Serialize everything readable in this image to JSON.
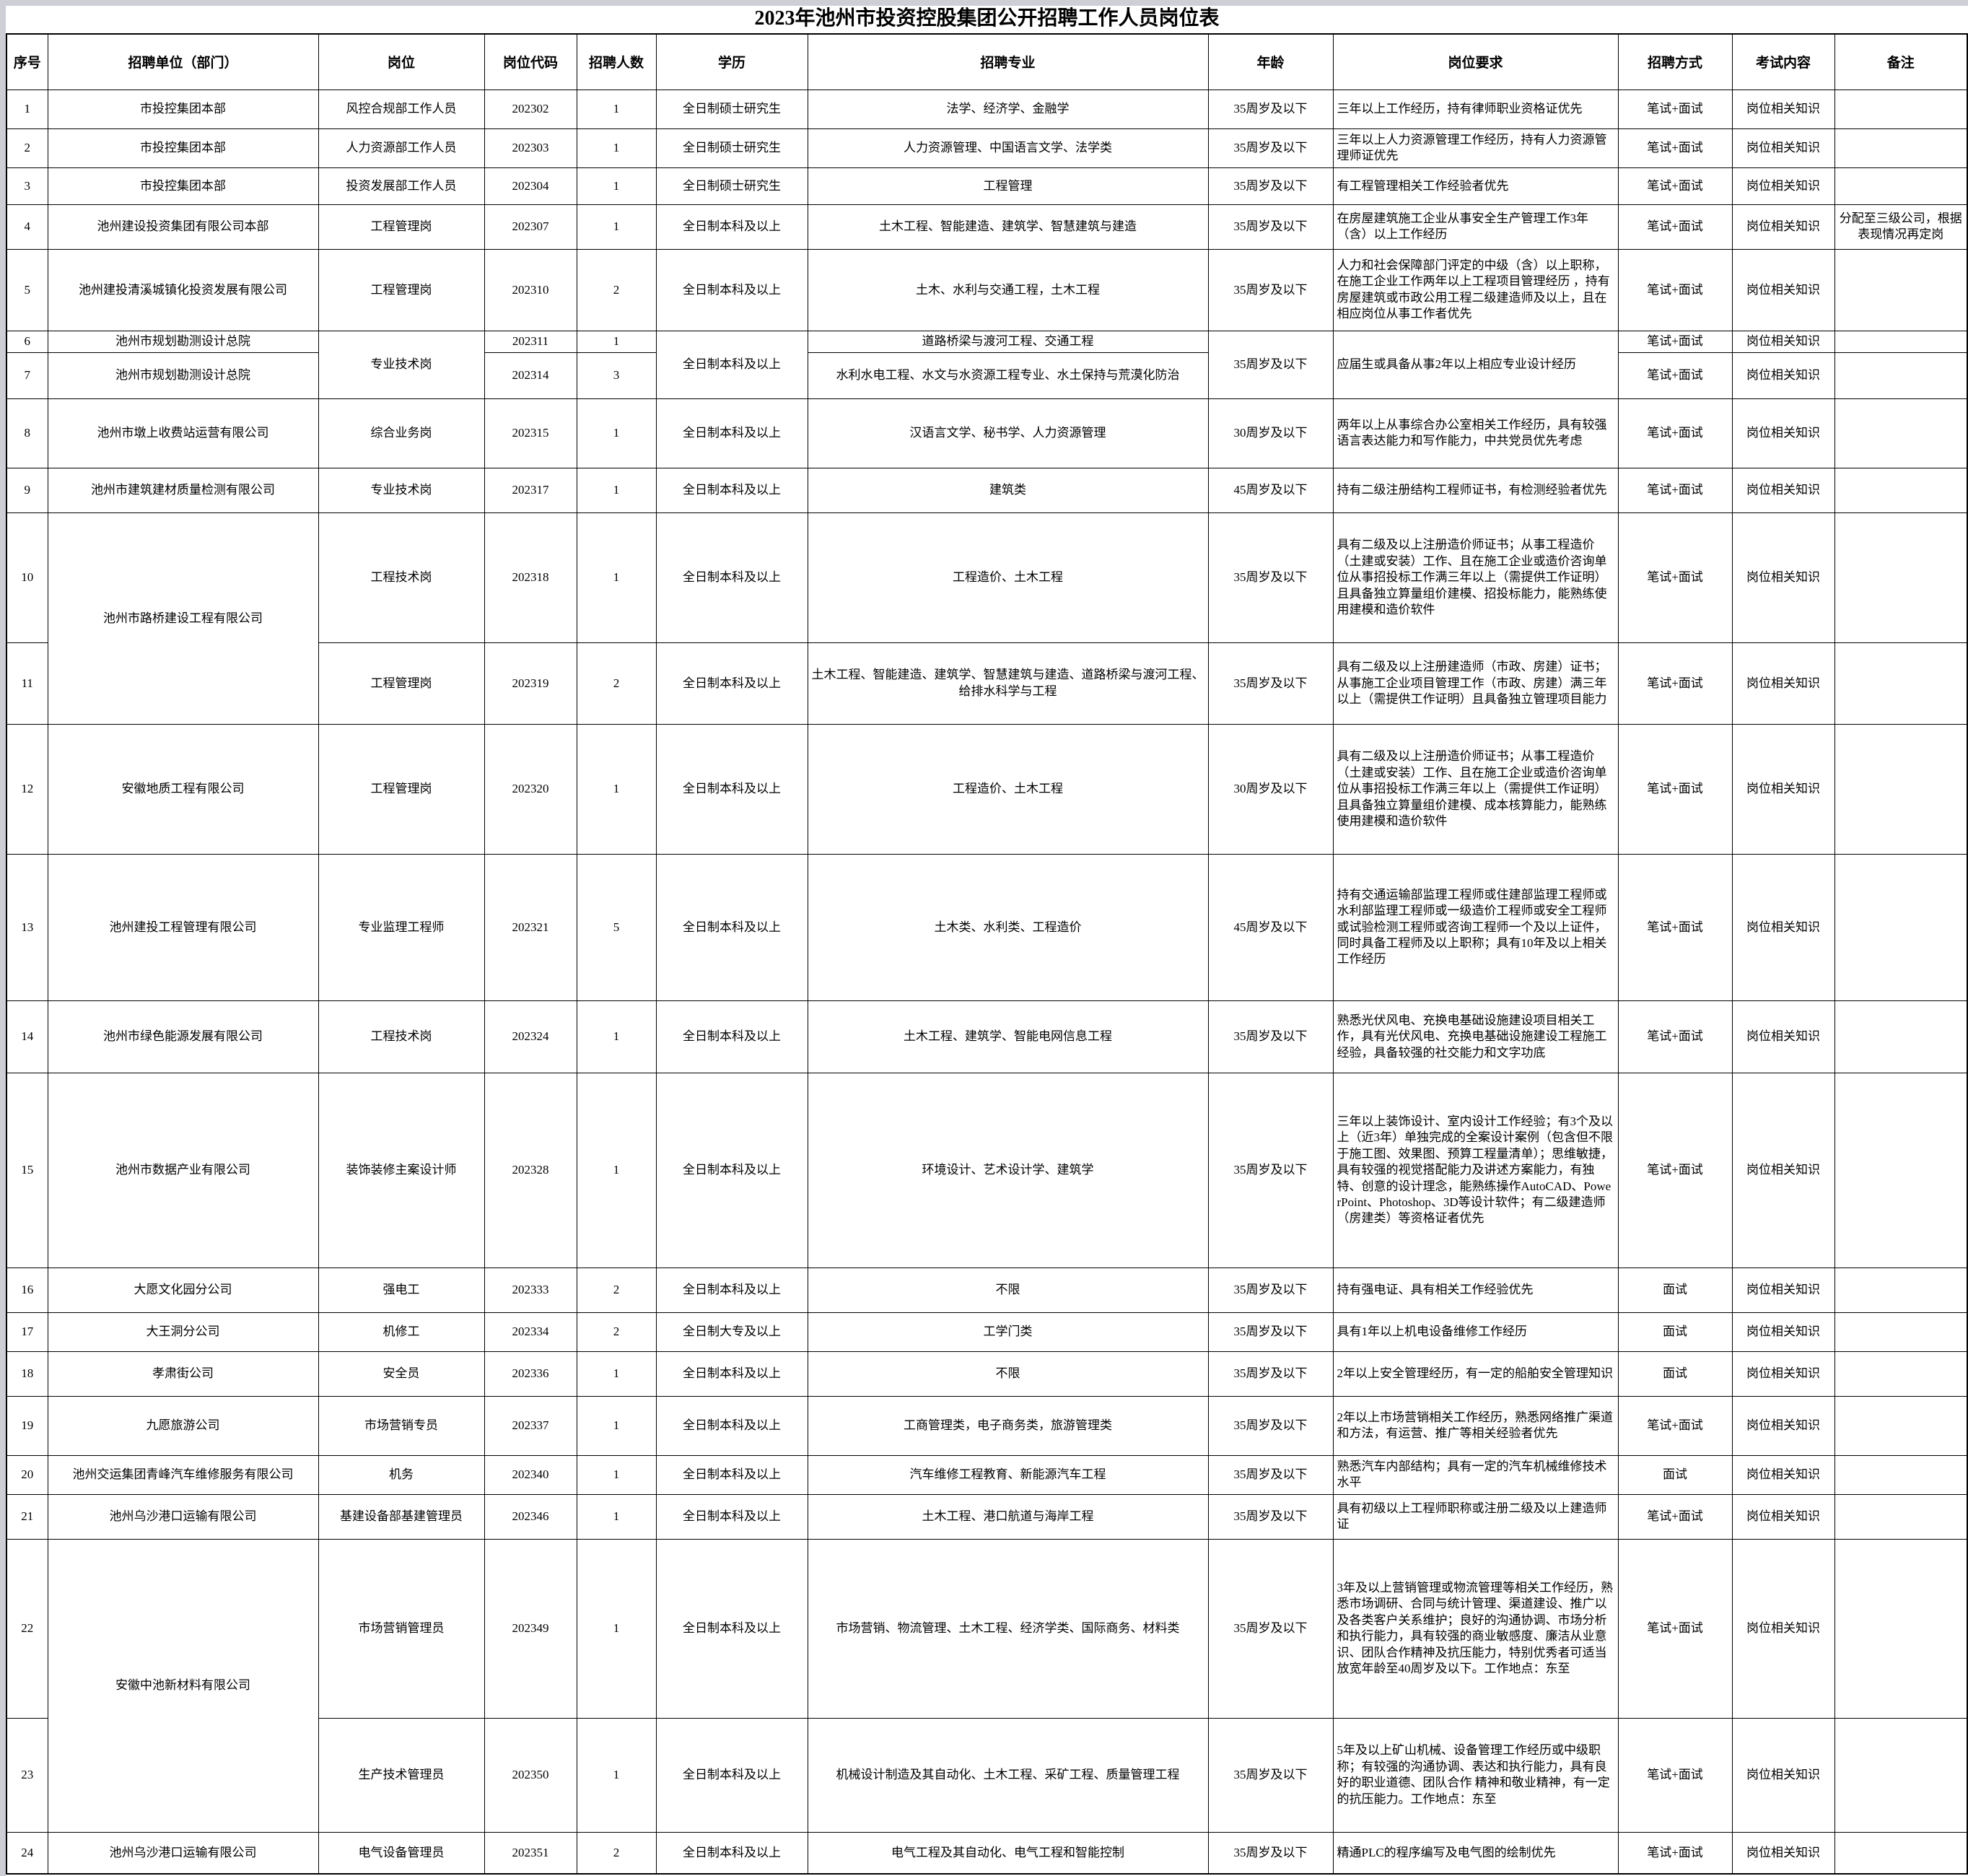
{
  "page": {
    "title": "2023年池州市投资控股集团公开招聘工作人员岗位表"
  },
  "table": {
    "columns": [
      "序号",
      "招聘单位（部门）",
      "岗位",
      "岗位代码",
      "招聘人数",
      "学历",
      "招聘专业",
      "年龄",
      "岗位要求",
      "招聘方式",
      "考试内容",
      "备注"
    ],
    "rows": [
      {
        "no": "1",
        "unit": "市投控集团本部",
        "post": "风控合规部工作人员",
        "code": "202302",
        "count": "1",
        "edu": "全日制硕士研究生",
        "major": "法学、经济学、金融学",
        "age": "35周岁及以下",
        "req": "三年以上工作经历，持有律师职业资格证优先",
        "method": "笔试+面试",
        "exam": "岗位相关知识",
        "note": ""
      },
      {
        "no": "2",
        "unit": "市投控集团本部",
        "post": "人力资源部工作人员",
        "code": "202303",
        "count": "1",
        "edu": "全日制硕士研究生",
        "major": "人力资源管理、中国语言文学、法学类",
        "age": "35周岁及以下",
        "req": "三年以上人力资源管理工作经历，持有人力资源管理师证优先",
        "method": "笔试+面试",
        "exam": "岗位相关知识",
        "note": ""
      },
      {
        "no": "3",
        "unit": "市投控集团本部",
        "post": "投资发展部工作人员",
        "code": "202304",
        "count": "1",
        "edu": "全日制硕士研究生",
        "major": "工程管理",
        "age": "35周岁及以下",
        "req": "有工程管理相关工作经验者优先",
        "method": "笔试+面试",
        "exam": "岗位相关知识",
        "note": ""
      },
      {
        "no": "4",
        "unit": "池州建设投资集团有限公司本部",
        "post": "工程管理岗",
        "code": "202307",
        "count": "1",
        "edu": "全日制本科及以上",
        "major": "土木工程、智能建造、建筑学、智慧建筑与建造",
        "age": "35周岁及以下",
        "req": "在房屋建筑施工企业从事安全生产管理工作3年（含）以上工作经历",
        "method": "笔试+面试",
        "exam": "岗位相关知识",
        "note": "分配至三级公司，根据表现情况再定岗"
      },
      {
        "no": "5",
        "unit": "池州建投清溪城镇化投资发展有限公司",
        "post": "工程管理岗",
        "code": "202310",
        "count": "2",
        "edu": "全日制本科及以上",
        "major": "土木、水利与交通工程，土木工程",
        "age": "35周岁及以下",
        "req": "人力和社会保障部门评定的中级（含）以上职称，在施工企业工作两年以上工程项目管理经历 ，持有房屋建筑或市政公用工程二级建造师及以上，且在相应岗位从事工作者优先",
        "method": "笔试+面试",
        "exam": "岗位相关知识",
        "note": ""
      },
      {
        "no": "6",
        "unit": "池州市规划勘测设计总院",
        "post": "专业技术岗",
        "code": "202311",
        "count": "1",
        "edu": "全日制本科及以上",
        "major": "道路桥梁与渡河工程、交通工程",
        "age": "35周岁及以下",
        "req": "应届生或具备从事2年以上相应专业设计经历",
        "method": "笔试+面试",
        "exam": "岗位相关知识",
        "note": "",
        "spans": {
          "post": 2,
          "edu": 2,
          "age": 2,
          "req": 2
        }
      },
      {
        "no": "7",
        "unit": "池州市规划勘测设计总院",
        "code": "202314",
        "count": "3",
        "major": "水利水电工程、水文与水资源工程专业、水土保持与荒漠化防治",
        "method": "笔试+面试",
        "exam": "岗位相关知识",
        "note": "",
        "skip": [
          "post",
          "edu",
          "age",
          "req"
        ]
      },
      {
        "no": "8",
        "unit": "池州市墩上收费站运营有限公司",
        "post": "综合业务岗",
        "code": "202315",
        "count": "1",
        "edu": "全日制本科及以上",
        "major": "汉语言文学、秘书学、人力资源管理",
        "age": "30周岁及以下",
        "req": "两年以上从事综合办公室相关工作经历，具有较强语言表达能力和写作能力，中共党员优先考虑",
        "method": "笔试+面试",
        "exam": "岗位相关知识",
        "note": ""
      },
      {
        "no": "9",
        "unit": "池州市建筑建材质量检测有限公司",
        "post": "专业技术岗",
        "code": "202317",
        "count": "1",
        "edu": "全日制本科及以上",
        "major": "建筑类",
        "age": "45周岁及以下",
        "req": "持有二级注册结构工程师证书，有检测经验者优先",
        "method": "笔试+面试",
        "exam": "岗位相关知识",
        "note": ""
      },
      {
        "no": "10",
        "unit": "池州市路桥建设工程有限公司",
        "post": "工程技术岗",
        "code": "202318",
        "count": "1",
        "edu": "全日制本科及以上",
        "major": "工程造价、土木工程",
        "age": "35周岁及以下",
        "req": "具有二级及以上注册造价师证书；从事工程造价（土建或安装）工作、且在施工企业或造价咨询单位从事招投标工作满三年以上（需提供工作证明）且具备独立算量组价建模、招投标能力，能熟练使用建模和造价软件",
        "method": "笔试+面试",
        "exam": "岗位相关知识",
        "note": "",
        "spans": {
          "unit": 2
        }
      },
      {
        "no": "11",
        "post": "工程管理岗",
        "code": "202319",
        "count": "2",
        "edu": "全日制本科及以上",
        "major": "土木工程、智能建造、建筑学、智慧建筑与建造、道路桥梁与渡河工程、给排水科学与工程",
        "age": "35周岁及以下",
        "req": "具有二级及以上注册建造师（市政、房建）证书；从事施工企业项目管理工作（市政、房建）满三年以上（需提供工作证明）且具备独立管理项目能力",
        "method": "笔试+面试",
        "exam": "岗位相关知识",
        "note": "",
        "skip": [
          "unit"
        ]
      },
      {
        "no": "12",
        "unit": "安徽地质工程有限公司",
        "post": "工程管理岗",
        "code": "202320",
        "count": "1",
        "edu": "全日制本科及以上",
        "major": "工程造价、土木工程",
        "age": "30周岁及以下",
        "req": "具有二级及以上注册造价师证书；从事工程造价（土建或安装）工作、且在施工企业或造价咨询单位从事招投标工作满三年以上（需提供工作证明）且具备独立算量组价建模、成本核算能力，能熟练使用建模和造价软件",
        "method": "笔试+面试",
        "exam": "岗位相关知识",
        "note": ""
      },
      {
        "no": "13",
        "unit": "池州建投工程管理有限公司",
        "post": "专业监理工程师",
        "code": "202321",
        "count": "5",
        "edu": "全日制本科及以上",
        "major": "土木类、水利类、工程造价",
        "age": "45周岁及以下",
        "req": "持有交通运输部监理工程师或住建部监理工程师或水利部监理工程师或一级造价工程师或安全工程师或试验检测工程师或咨询工程师一个及以上证件，同时具备工程师及以上职称；具有10年及以上相关工作经历",
        "method": "笔试+面试",
        "exam": "岗位相关知识",
        "note": ""
      },
      {
        "no": "14",
        "unit": "池州市绿色能源发展有限公司",
        "post": "工程技术岗",
        "code": "202324",
        "count": "1",
        "edu": "全日制本科及以上",
        "major": "土木工程、建筑学、智能电网信息工程",
        "age": "35周岁及以下",
        "req": "熟悉光伏风电、充换电基础设施建设项目相关工作，具有光伏风电、充换电基础设施建设工程施工经验，具备较强的社交能力和文字功底",
        "method": "笔试+面试",
        "exam": "岗位相关知识",
        "note": ""
      },
      {
        "no": "15",
        "unit": "池州市数据产业有限公司",
        "post": "装饰装修主案设计师",
        "code": "202328",
        "count": "1",
        "edu": "全日制本科及以上",
        "major": "环境设计、艺术设计学、建筑学",
        "age": "35周岁及以下",
        "req": "三年以上装饰设计、室内设计工作经验；有3个及以上（近3年）单独完成的全案设计案例（包含但不限于施工图、效果图、预算工程量清单）；思维敏捷，具有较强的视觉搭配能力及讲述方案能力，有独特、创意的设计理念，能熟练操作AutoCAD、PowerPoint、Photoshop、3D等设计软件；有二级建造师（房建类）等资格证者优先",
        "method": "笔试+面试",
        "exam": "岗位相关知识",
        "note": ""
      },
      {
        "no": "16",
        "unit": "大愿文化园分公司",
        "post": "强电工",
        "code": "202333",
        "count": "2",
        "edu": "全日制本科及以上",
        "major": "不限",
        "age": "35周岁及以下",
        "req": "持有强电证、具有相关工作经验优先",
        "method": "面试",
        "exam": "岗位相关知识",
        "note": ""
      },
      {
        "no": "17",
        "unit": "大王洞分公司",
        "post": "机修工",
        "code": "202334",
        "count": "2",
        "edu": "全日制大专及以上",
        "major": "工学门类",
        "age": "35周岁及以下",
        "req": "具有1年以上机电设备维修工作经历",
        "method": "面试",
        "exam": "岗位相关知识",
        "note": ""
      },
      {
        "no": "18",
        "unit": "孝肃街公司",
        "post": "安全员",
        "code": "202336",
        "count": "1",
        "edu": "全日制本科及以上",
        "major": "不限",
        "age": "35周岁及以下",
        "req": "2年以上安全管理经历，有一定的船舶安全管理知识",
        "method": "面试",
        "exam": "岗位相关知识",
        "note": ""
      },
      {
        "no": "19",
        "unit": "九愿旅游公司",
        "post": "市场营销专员",
        "code": "202337",
        "count": "1",
        "edu": "全日制本科及以上",
        "major": "工商管理类，电子商务类，旅游管理类",
        "age": "35周岁及以下",
        "req": "2年以上市场营销相关工作经历，熟悉网络推广渠道和方法，有运营、推广等相关经验者优先",
        "method": "笔试+面试",
        "exam": "岗位相关知识",
        "note": ""
      },
      {
        "no": "20",
        "unit": "池州交运集团青峰汽车维修服务有限公司",
        "post": "机务",
        "code": "202340",
        "count": "1",
        "edu": "全日制本科及以上",
        "major": "汽车维修工程教育、新能源汽车工程",
        "age": "35周岁及以下",
        "req": "熟悉汽车内部结构；具有一定的汽车机械维修技术水平",
        "method": "面试",
        "exam": "岗位相关知识",
        "note": ""
      },
      {
        "no": "21",
        "unit": "池州乌沙港口运输有限公司",
        "post": "基建设备部基建管理员",
        "code": "202346",
        "count": "1",
        "edu": "全日制本科及以上",
        "major": "土木工程、港口航道与海岸工程",
        "age": "35周岁及以下",
        "req": "具有初级以上工程师职称或注册二级及以上建造师证",
        "method": "笔试+面试",
        "exam": "岗位相关知识",
        "note": ""
      },
      {
        "no": "22",
        "unit": "安徽中池新材料有限公司",
        "post": "市场营销管理员",
        "code": "202349",
        "count": "1",
        "edu": "全日制本科及以上",
        "major": "市场营销、物流管理、土木工程、经济学类、国际商务、材料类",
        "age": "35周岁及以下",
        "req": "3年及以上营销管理或物流管理等相关工作经历，熟悉市场调研、合同与统计管理、渠道建设、推广以及各类客户关系维护；良好的沟通协调、市场分析和执行能力，具有较强的商业敏感度、廉洁从业意识、团队合作精神及抗压能力，特别优秀者可适当放宽年龄至40周岁及以下。工作地点：东至",
        "method": "笔试+面试",
        "exam": "岗位相关知识",
        "note": "",
        "spans": {
          "unit": 2
        }
      },
      {
        "no": "23",
        "post": "生产技术管理员",
        "code": "202350",
        "count": "1",
        "edu": "全日制本科及以上",
        "major": "机械设计制造及其自动化、土木工程、采矿工程、质量管理工程",
        "age": "35周岁及以下",
        "req": "5年及以上矿山机械、设备管理工作经历或中级职称；有较强的沟通协调、表达和执行能力，具有良好的职业道德、团队合作 精神和敬业精神，有一定的抗压能力。工作地点：东至",
        "method": "笔试+面试",
        "exam": "岗位相关知识",
        "note": "",
        "skip": [
          "unit"
        ]
      },
      {
        "no": "24",
        "unit": "池州乌沙港口运输有限公司",
        "post": "电气设备管理员",
        "code": "202351",
        "count": "2",
        "edu": "全日制本科及以上",
        "major": "电气工程及其自动化、电气工程和智能控制",
        "age": "35周岁及以下",
        "req": "精通PLC的程序编写及电气图的绘制优先",
        "method": "笔试+面试",
        "exam": "岗位相关知识",
        "note": ""
      }
    ]
  }
}
